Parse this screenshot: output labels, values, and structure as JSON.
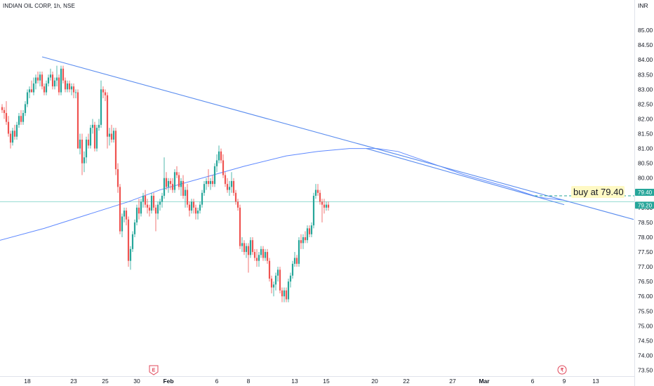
{
  "chart_data": {
    "type": "candlestick",
    "title": "INDIAN OIL CORP, 1h, NSE",
    "currency": "INR",
    "ylim": [
      73.3,
      85.5
    ],
    "yticks": [
      73.5,
      74.0,
      74.5,
      75.0,
      75.5,
      76.0,
      76.5,
      77.0,
      77.5,
      78.0,
      78.5,
      79.0,
      79.5,
      80.0,
      80.5,
      81.0,
      81.5,
      82.0,
      82.5,
      83.0,
      83.5,
      84.0,
      84.5,
      85.0
    ],
    "x_labels": [
      {
        "text": "18",
        "bar": 12,
        "bold": false
      },
      {
        "text": "23",
        "bar": 34,
        "bold": false
      },
      {
        "text": "25",
        "bar": 49,
        "bold": false
      },
      {
        "text": "30",
        "bar": 64,
        "bold": false
      },
      {
        "text": "Feb",
        "bar": 79,
        "bold": true
      },
      {
        "text": "6",
        "bar": 102,
        "bold": false
      },
      {
        "text": "8",
        "bar": 117,
        "bold": false
      },
      {
        "text": "13",
        "bar": 139,
        "bold": false
      },
      {
        "text": "15",
        "bar": 154,
        "bold": false
      },
      {
        "text": "20",
        "bar": 177,
        "bold": false
      },
      {
        "text": "22",
        "bar": 192,
        "bold": false
      },
      {
        "text": "27",
        "bar": 214,
        "bold": false
      },
      {
        "text": "Mar",
        "bar": 229,
        "bold": true
      },
      {
        "text": "6",
        "bar": 252,
        "bold": false
      },
      {
        "text": "9",
        "bar": 267,
        "bold": false
      },
      {
        "text": "13",
        "bar": 282,
        "bold": false
      }
    ],
    "candles": [
      [
        82.4,
        82.5,
        82.2,
        82.3
      ],
      [
        82.3,
        82.4,
        82.0,
        82.2
      ],
      [
        82.2,
        82.6,
        81.8,
        81.9
      ],
      [
        81.9,
        82.1,
        81.4,
        81.5
      ],
      [
        81.5,
        81.6,
        81.0,
        81.2
      ],
      [
        81.2,
        81.7,
        81.1,
        81.6
      ],
      [
        81.6,
        81.8,
        81.3,
        81.4
      ],
      [
        81.4,
        81.9,
        81.3,
        81.8
      ],
      [
        81.8,
        82.2,
        81.7,
        82.1
      ],
      [
        82.1,
        82.3,
        81.8,
        81.9
      ],
      [
        81.9,
        82.3,
        81.8,
        82.2
      ],
      [
        82.2,
        82.6,
        82.1,
        82.5
      ],
      [
        82.5,
        83.0,
        82.4,
        82.9
      ],
      [
        82.9,
        83.1,
        82.7,
        83.0
      ],
      [
        83.0,
        83.3,
        82.9,
        82.9
      ],
      [
        82.9,
        83.4,
        82.8,
        83.2
      ],
      [
        83.2,
        83.5,
        83.0,
        83.4
      ],
      [
        83.4,
        83.6,
        83.2,
        83.3
      ],
      [
        83.3,
        83.6,
        83.1,
        83.5
      ],
      [
        83.5,
        83.6,
        83.0,
        83.1
      ],
      [
        83.1,
        83.2,
        82.8,
        82.9
      ],
      [
        82.9,
        83.3,
        82.8,
        83.2
      ],
      [
        83.2,
        83.5,
        83.1,
        83.4
      ],
      [
        83.4,
        83.7,
        83.3,
        83.5
      ],
      [
        83.5,
        83.6,
        83.0,
        83.1
      ],
      [
        83.1,
        83.4,
        83.0,
        83.3
      ],
      [
        83.3,
        83.8,
        83.1,
        83.4
      ],
      [
        83.4,
        83.5,
        82.8,
        82.9
      ],
      [
        82.9,
        83.8,
        82.8,
        83.7
      ],
      [
        83.7,
        83.8,
        83.2,
        83.3
      ],
      [
        83.3,
        83.4,
        82.9,
        83.0
      ],
      [
        83.0,
        83.3,
        82.9,
        83.2
      ],
      [
        83.2,
        83.3,
        82.9,
        83.0
      ],
      [
        83.0,
        83.2,
        82.8,
        83.1
      ],
      [
        83.1,
        83.2,
        82.7,
        82.9
      ],
      [
        82.9,
        83.0,
        82.7,
        82.9
      ],
      [
        82.9,
        83.0,
        81.0,
        81.0
      ],
      [
        81.0,
        81.5,
        80.8,
        81.3
      ],
      [
        81.3,
        81.5,
        80.1,
        80.5
      ],
      [
        80.5,
        80.9,
        80.2,
        80.7
      ],
      [
        80.7,
        81.4,
        80.5,
        81.3
      ],
      [
        81.3,
        81.5,
        81.0,
        81.1
      ],
      [
        81.1,
        81.8,
        81.0,
        81.7
      ],
      [
        81.7,
        82.0,
        81.5,
        81.8
      ],
      [
        81.8,
        81.9,
        80.9,
        81.0
      ],
      [
        81.0,
        81.8,
        80.9,
        81.7
      ],
      [
        81.7,
        82.0,
        81.6,
        81.8
      ],
      [
        81.8,
        83.3,
        81.7,
        83.0
      ],
      [
        83.0,
        83.1,
        82.7,
        82.9
      ],
      [
        82.9,
        83.0,
        82.6,
        82.8
      ],
      [
        82.8,
        82.9,
        81.0,
        81.4
      ],
      [
        81.4,
        81.7,
        81.1,
        81.5
      ],
      [
        81.5,
        81.8,
        81.2,
        81.3
      ],
      [
        81.3,
        81.7,
        81.2,
        81.6
      ],
      [
        81.6,
        81.7,
        80.1,
        80.3
      ],
      [
        80.3,
        80.5,
        79.5,
        79.7
      ],
      [
        79.7,
        79.8,
        78.1,
        78.2
      ],
      [
        78.2,
        78.8,
        78.0,
        78.7
      ],
      [
        78.7,
        79.0,
        78.5,
        78.9
      ],
      [
        78.9,
        79.0,
        78.4,
        78.6
      ],
      [
        78.6,
        78.7,
        77.0,
        77.2
      ],
      [
        77.2,
        77.7,
        76.9,
        77.6
      ],
      [
        77.6,
        78.2,
        77.5,
        78.1
      ],
      [
        78.1,
        78.6,
        78.0,
        78.5
      ],
      [
        78.5,
        79.1,
        78.4,
        79.0
      ],
      [
        79.0,
        79.3,
        78.6,
        78.8
      ],
      [
        78.8,
        79.3,
        78.7,
        79.2
      ],
      [
        79.2,
        79.5,
        79.0,
        79.4
      ],
      [
        79.4,
        79.6,
        79.0,
        79.1
      ],
      [
        79.1,
        79.3,
        78.8,
        79.0
      ],
      [
        79.0,
        79.1,
        78.7,
        78.9
      ],
      [
        78.9,
        79.5,
        78.8,
        79.4
      ],
      [
        79.4,
        79.5,
        78.9,
        79.0
      ],
      [
        79.0,
        79.1,
        78.2,
        78.8
      ],
      [
        78.8,
        79.2,
        78.6,
        79.1
      ],
      [
        79.1,
        79.3,
        78.9,
        79.2
      ],
      [
        79.2,
        79.5,
        79.0,
        79.4
      ],
      [
        79.4,
        80.7,
        79.3,
        80.0
      ],
      [
        80.0,
        80.2,
        79.6,
        79.7
      ],
      [
        79.7,
        80.0,
        79.5,
        79.9
      ],
      [
        79.9,
        80.0,
        79.6,
        79.8
      ],
      [
        79.8,
        80.0,
        79.5,
        79.6
      ],
      [
        79.6,
        80.3,
        79.5,
        80.2
      ],
      [
        80.2,
        80.4,
        80.0,
        80.1
      ],
      [
        80.1,
        80.2,
        79.6,
        79.7
      ],
      [
        79.7,
        80.0,
        79.4,
        79.9
      ],
      [
        79.9,
        80.1,
        79.3,
        79.4
      ],
      [
        79.4,
        79.7,
        79.0,
        79.6
      ],
      [
        79.6,
        79.8,
        79.0,
        79.1
      ],
      [
        79.1,
        79.2,
        78.7,
        78.9
      ],
      [
        78.9,
        79.3,
        78.8,
        79.2
      ],
      [
        79.2,
        79.3,
        78.8,
        79.0
      ],
      [
        79.0,
        79.1,
        78.6,
        78.8
      ],
      [
        78.8,
        79.0,
        78.6,
        78.9
      ],
      [
        78.9,
        79.2,
        78.8,
        79.1
      ],
      [
        79.1,
        79.6,
        79.0,
        79.5
      ],
      [
        79.5,
        79.9,
        79.4,
        79.8
      ],
      [
        79.8,
        80.0,
        79.6,
        79.9
      ],
      [
        79.9,
        80.3,
        79.7,
        79.8
      ],
      [
        79.8,
        80.0,
        79.6,
        79.9
      ],
      [
        79.9,
        80.1,
        79.7,
        79.8
      ],
      [
        79.8,
        80.5,
        79.7,
        80.4
      ],
      [
        80.4,
        80.8,
        80.2,
        80.6
      ],
      [
        80.6,
        81.1,
        80.5,
        80.9
      ],
      [
        80.9,
        81.0,
        80.5,
        80.6
      ],
      [
        80.6,
        80.8,
        80.0,
        80.1
      ],
      [
        80.1,
        80.2,
        79.7,
        79.8
      ],
      [
        79.8,
        80.0,
        79.5,
        79.6
      ],
      [
        79.6,
        79.9,
        79.4,
        79.7
      ],
      [
        79.7,
        80.2,
        79.5,
        79.9
      ],
      [
        79.9,
        80.0,
        79.4,
        79.5
      ],
      [
        79.5,
        79.6,
        79.1,
        79.2
      ],
      [
        79.2,
        79.3,
        78.9,
        79.0
      ],
      [
        79.0,
        79.1,
        77.6,
        77.7
      ],
      [
        77.7,
        78.0,
        77.5,
        77.8
      ],
      [
        77.8,
        77.9,
        77.4,
        77.5
      ],
      [
        77.5,
        77.8,
        77.3,
        77.7
      ],
      [
        77.7,
        77.8,
        76.8,
        77.4
      ],
      [
        77.4,
        78.0,
        77.3,
        77.9
      ],
      [
        77.9,
        78.0,
        77.4,
        77.5
      ],
      [
        77.5,
        77.6,
        77.2,
        77.3
      ],
      [
        77.3,
        77.6,
        77.0,
        77.2
      ],
      [
        77.2,
        77.5,
        77.0,
        77.4
      ],
      [
        77.4,
        77.7,
        77.3,
        77.6
      ],
      [
        77.6,
        77.7,
        77.2,
        77.3
      ],
      [
        77.3,
        77.6,
        77.2,
        77.5
      ],
      [
        77.5,
        77.6,
        77.1,
        77.2
      ],
      [
        77.2,
        77.3,
        76.5,
        76.6
      ],
      [
        76.6,
        76.7,
        76.1,
        76.3
      ],
      [
        76.3,
        76.5,
        76.0,
        76.4
      ],
      [
        76.4,
        76.8,
        76.2,
        76.7
      ],
      [
        76.7,
        77.0,
        76.5,
        76.9
      ],
      [
        76.9,
        77.0,
        76.1,
        76.2
      ],
      [
        76.2,
        76.3,
        75.8,
        76.0
      ],
      [
        76.0,
        76.3,
        75.8,
        76.2
      ],
      [
        76.2,
        76.3,
        75.8,
        75.9
      ],
      [
        75.9,
        76.6,
        75.8,
        76.5
      ],
      [
        76.5,
        76.8,
        76.3,
        76.7
      ],
      [
        76.7,
        77.2,
        76.6,
        77.1
      ],
      [
        77.1,
        77.5,
        77.0,
        77.3
      ],
      [
        77.3,
        77.4,
        77.0,
        77.1
      ],
      [
        77.1,
        78.0,
        77.0,
        77.9
      ],
      [
        77.9,
        78.1,
        77.6,
        77.8
      ],
      [
        77.8,
        78.1,
        77.6,
        78.0
      ],
      [
        78.0,
        78.2,
        77.8,
        77.9
      ],
      [
        77.9,
        78.4,
        77.8,
        78.3
      ],
      [
        78.3,
        78.4,
        78.0,
        78.1
      ],
      [
        78.1,
        78.5,
        78.0,
        78.4
      ],
      [
        78.4,
        79.5,
        78.3,
        79.4
      ],
      [
        79.4,
        79.8,
        79.3,
        79.6
      ],
      [
        79.6,
        79.8,
        79.4,
        79.5
      ],
      [
        79.5,
        79.6,
        79.1,
        79.2
      ],
      [
        79.2,
        79.3,
        78.5,
        79.1
      ],
      [
        79.1,
        79.3,
        78.8,
        79.0
      ],
      [
        79.0,
        79.2,
        78.9,
        79.1
      ],
      [
        79.1,
        79.2,
        78.9,
        79.0
      ]
    ],
    "trendlines": [
      {
        "name": "",
        "points": [
          [
            19,
            84.1
          ],
          [
            300,
            78.6
          ]
        ],
        "color": "#5b8def"
      },
      {
        "name": "",
        "points": [
          [
            173,
            81.0
          ],
          [
            267,
            79.1
          ]
        ],
        "color": "#5b8def"
      },
      {
        "name": "",
        "points": [
          [
            -6,
            77.8
          ],
          [
            267,
            79.25
          ]
        ],
        "color": "#2962ff",
        "curve": true
      }
    ],
    "moving_average": [
      [
        -6,
        77.8
      ],
      [
        20,
        78.3
      ],
      [
        40,
        78.75
      ],
      [
        60,
        79.2
      ],
      [
        75,
        79.6
      ],
      [
        95,
        80.0
      ],
      [
        115,
        80.4
      ],
      [
        135,
        80.75
      ],
      [
        150,
        80.9
      ],
      [
        165,
        81.0
      ],
      [
        178,
        81.0
      ],
      [
        188,
        80.9
      ],
      [
        200,
        80.6
      ],
      [
        220,
        80.1
      ],
      [
        240,
        79.7
      ],
      [
        255,
        79.35
      ],
      [
        267,
        79.25
      ]
    ],
    "annotation": {
      "text": "buy at  79.40",
      "price": 79.4
    },
    "horizontal_line": {
      "price": 79.2,
      "color": "#2bb7a6"
    },
    "price_labels": [
      {
        "text": "79.40",
        "price": 79.4,
        "color": "#26a69a"
      },
      {
        "text": "79.20",
        "price": 79.2,
        "color": "#26a69a"
      }
    ],
    "events": [
      {
        "label": "E",
        "bar": 72,
        "color": "#e0475a"
      },
      {
        "label": "₹",
        "bar": 266,
        "color": "#e0475a"
      }
    ],
    "colors": {
      "up": "#26a69a",
      "down": "#ef5350",
      "bg": "#ffffff",
      "text": "#131722"
    }
  }
}
